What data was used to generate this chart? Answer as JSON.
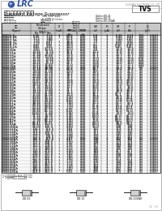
{
  "title_chinese": "瞬态电压抑制二极管",
  "title_english": "Transient Voltage Suppressor",
  "company": "LUGUANG ELECTRONIC CO., LTD",
  "logo_text": "LRC",
  "type_box": "TVS",
  "spec_lines": [
    [
      "标称击穿电压范围",
      "VBR: 6.8V~440V",
      "Outline:DO-41"
    ],
    [
      "最大峰值脉冲功率",
      "P: 400W @ t=1ms",
      "Outline:DO-15"
    ],
    [
      "封装 / 极型 / 极性",
      "U: 单向/双向",
      "Outline:DO-201AD"
    ]
  ],
  "table_data": [
    [
      "P4KE6.8",
      "6.45",
      "7.14",
      "1",
      "58.8",
      "600",
      "5.8",
      "1",
      "6.40",
      "6.63",
      "700",
      "0.987"
    ],
    [
      "P4KE6.8A",
      "6.45",
      "7.14",
      "1",
      "58.8",
      "600",
      "5.8",
      "1",
      "6.40",
      "6.63",
      "700",
      "0.987"
    ],
    [
      "P4KE7.5",
      "7.13",
      "7.88",
      "",
      "53.3",
      "600",
      "7.0",
      "1",
      "7.00",
      "7.00",
      "700",
      "0.987"
    ],
    [
      "P4KE7.5A",
      "7.13",
      "7.88",
      "",
      "53.3",
      "600",
      "7.0",
      "1",
      "7.00",
      "7.00",
      "700",
      "0.987"
    ],
    [
      "P4KE8.2",
      "7.79",
      "8.61",
      "1",
      "48.8",
      "600",
      "7.7",
      "1",
      "8.55",
      "8.55",
      "700",
      "0.987"
    ],
    [
      "P4KE8.2A",
      "7.79",
      "8.61",
      "",
      "48.8",
      "600",
      "7.7",
      "1",
      "8.55",
      "8.55",
      "700",
      "0.987"
    ],
    [
      "P4KE9.1",
      "8.65",
      "9.55",
      "1",
      "44.0",
      "600",
      "8.5",
      "1",
      "9.40",
      "9.40",
      "700",
      "0.987"
    ],
    [
      "P4KE9.1A",
      "8.65",
      "9.55",
      "",
      "44.0",
      "600",
      "8.5",
      "1",
      "9.40",
      "9.40",
      "700",
      "0.987"
    ],
    [
      "P4KE10",
      "9.50",
      "10.50",
      "1",
      "40.0",
      "600",
      "9.0",
      "1",
      "10.4",
      "10.4",
      "700",
      "0.987"
    ],
    [
      "P4KE10A",
      "9.50",
      "10.50",
      "",
      "40.0",
      "600",
      "9.0",
      "1",
      "10.4",
      "10.4",
      "700",
      "0.987"
    ],
    [
      "P4KE11",
      "10.45",
      "11.55",
      "1",
      "36.4",
      "500",
      "10.2",
      "1",
      "11.6",
      "11.6",
      "700",
      "0.987"
    ],
    [
      "P4KE11A",
      "10.45",
      "11.55",
      "",
      "36.4",
      "500",
      "10.2",
      "1",
      "11.6",
      "11.6",
      "700",
      "0.987"
    ],
    [
      "P4KE12",
      "11.40",
      "12.60",
      "1",
      "33.3",
      "500",
      "11.1",
      "1",
      "12.7",
      "12.7",
      "700",
      "0.987"
    ],
    [
      "P4KE12A",
      "11.40",
      "12.60",
      "",
      "33.3",
      "500",
      "11.1",
      "1",
      "12.7",
      "12.7",
      "700",
      "0.987"
    ],
    [
      "P4KE13",
      "12.35",
      "13.65",
      "1",
      "30.8",
      "500",
      "12.0",
      "1",
      "13.8",
      "13.8",
      "500",
      "0.987"
    ],
    [
      "P4KE13A",
      "12.35",
      "13.65",
      "",
      "30.8",
      "500",
      "12.0",
      "1",
      "13.8",
      "13.8",
      "500",
      "0.987"
    ],
    [
      "P4KE15",
      "14.25",
      "15.75",
      "1",
      "26.7",
      "500",
      "13.8",
      "1",
      "16.0",
      "16.0",
      "200",
      "0.987"
    ],
    [
      "P4KE15A",
      "14.25",
      "15.75",
      "",
      "26.7",
      "500",
      "13.8",
      "1",
      "16.0",
      "16.0",
      "200",
      "0.987"
    ],
    [
      "P4KE16",
      "15.20",
      "16.80",
      "1",
      "25.0",
      "500",
      "14.8",
      "1",
      "17.1",
      "17.1",
      "200",
      "0.987"
    ],
    [
      "P4KE16A",
      "15.20",
      "16.80",
      "",
      "25.0",
      "500",
      "14.8",
      "1",
      "17.1",
      "17.1",
      "200",
      "0.987"
    ],
    [
      "P4KE18",
      "17.10",
      "18.90",
      "1",
      "22.2",
      "500",
      "16.7",
      "1",
      "19.2",
      "19.2",
      "50",
      "0.987"
    ],
    [
      "P4KE18A",
      "17.10",
      "18.90",
      "",
      "22.2",
      "500",
      "16.7",
      "1",
      "19.2",
      "19.2",
      "50",
      "0.987"
    ],
    [
      "P4KE20",
      "19.00",
      "21.00",
      "1",
      "20.0",
      "500",
      "18.5",
      "1",
      "21.5",
      "21.5",
      "50",
      "0.987"
    ],
    [
      "P4KE20A",
      "19.00",
      "21.00",
      "",
      "20.0",
      "500",
      "18.5",
      "1",
      "21.5",
      "21.5",
      "50",
      "0.987"
    ],
    [
      "P4KE22",
      "20.90",
      "23.10",
      "1",
      "18.2",
      "500",
      "20.4",
      "1",
      "23.5",
      "23.5",
      "50",
      "0.987"
    ],
    [
      "P4KE22A",
      "20.90",
      "23.10",
      "",
      "18.2",
      "500",
      "20.4",
      "1",
      "23.5",
      "23.5",
      "50",
      "0.987"
    ],
    [
      "P4KE24",
      "22.80",
      "25.20",
      "1",
      "16.7",
      "500",
      "22.2",
      "1",
      "25.6",
      "25.6",
      "50",
      "0.987"
    ],
    [
      "P4KE24A",
      "22.80",
      "25.20",
      "",
      "16.7",
      "500",
      "22.2",
      "1",
      "25.6",
      "25.6",
      "50",
      "0.987"
    ],
    [
      "P4KE27",
      "25.65",
      "28.35",
      "1",
      "14.8",
      "500",
      "24.9",
      "1",
      "28.9",
      "28.9",
      "50",
      "0.987"
    ],
    [
      "P4KE27A",
      "25.65",
      "28.35",
      "",
      "14.8",
      "500",
      "24.9",
      "1",
      "28.9",
      "28.9",
      "50",
      "0.987"
    ],
    [
      "P4KE30",
      "28.50",
      "31.50",
      "1",
      "13.3",
      "500",
      "27.8",
      "1",
      "32.0",
      "32.0",
      "50",
      "0.987"
    ],
    [
      "P4KE30A",
      "28.50",
      "31.50",
      "",
      "13.3",
      "500",
      "27.8",
      "1",
      "32.0",
      "32.0",
      "50",
      "0.987"
    ],
    [
      "P4KE33",
      "31.35",
      "34.65",
      "1",
      "12.1",
      "500",
      "30.6",
      "1",
      "35.5",
      "35.5",
      "50",
      "0.987"
    ],
    [
      "P4KE33A",
      "31.35",
      "34.65",
      "",
      "12.1",
      "500",
      "30.6",
      "1",
      "35.5",
      "35.5",
      "50",
      "0.987"
    ],
    [
      "P4KE36",
      "34.20",
      "37.80",
      "1",
      "11.1",
      "500",
      "33.3",
      "1",
      "38.9",
      "38.9",
      "50",
      "0.987"
    ],
    [
      "P4KE36A",
      "34.20",
      "37.80",
      "",
      "11.1",
      "500",
      "33.3",
      "1",
      "38.9",
      "38.9",
      "50",
      "0.987"
    ],
    [
      "P4KE39",
      "37.05",
      "41.00",
      "1",
      "10.3",
      "500",
      "36.1",
      "1",
      "42.1",
      "42.1",
      "50",
      "0.987"
    ],
    [
      "P4KE39A",
      "37.05",
      "41.00",
      "",
      "10.3",
      "500",
      "36.1",
      "1",
      "42.1",
      "42.1",
      "50",
      "0.987"
    ],
    [
      "P4KE43",
      "40.85",
      "45.20",
      "1",
      "9.30",
      "500",
      "39.8",
      "1",
      "46.4",
      "46.4",
      "50",
      "0.987"
    ],
    [
      "P4KE43A",
      "40.85",
      "45.20",
      "",
      "9.30",
      "500",
      "39.8",
      "1",
      "46.4",
      "46.4",
      "50",
      "0.987"
    ],
    [
      "P4KE47",
      "44.65",
      "49.40",
      "1",
      "8.50",
      "500",
      "43.5",
      "1",
      "50.8",
      "50.8",
      "50",
      "0.987"
    ],
    [
      "P4KE47A",
      "44.65",
      "49.40",
      "",
      "8.50",
      "500",
      "43.5",
      "1",
      "50.8",
      "50.8",
      "50",
      "0.987"
    ],
    [
      "P4KE51",
      "48.45",
      "53.60",
      "1",
      "7.90",
      "500",
      "47.2",
      "1",
      "55.1",
      "55.1",
      "50",
      "0.987"
    ],
    [
      "P4KE51A",
      "48.45",
      "53.60",
      "",
      "7.90",
      "500",
      "47.2",
      "1",
      "55.1",
      "55.1",
      "50",
      "0.987"
    ],
    [
      "P4KE56",
      "53.20",
      "58.80",
      "1",
      "7.10",
      "500",
      "51.8",
      "1",
      "60.4",
      "60.4",
      "50",
      "0.987"
    ],
    [
      "P4KE56A",
      "53.20",
      "58.80",
      "",
      "7.10",
      "500",
      "51.8",
      "1",
      "60.4",
      "60.4",
      "50",
      "0.987"
    ],
    [
      "P4KE62",
      "58.90",
      "65.10",
      "1",
      "6.50",
      "500",
      "57.3",
      "1",
      "67.0",
      "67.0",
      "50",
      "0.987"
    ],
    [
      "P4KE62A",
      "58.90",
      "65.10",
      "",
      "6.50",
      "500",
      "57.3",
      "1",
      "67.0",
      "67.0",
      "50",
      "0.987"
    ],
    [
      "P4KE68",
      "64.60",
      "71.40",
      "1",
      "5.90",
      "500",
      "62.8",
      "1",
      "73.5",
      "73.5",
      "50",
      "0.987"
    ],
    [
      "P4KE68A",
      "64.60",
      "71.40",
      "",
      "5.90",
      "500",
      "62.8",
      "1",
      "73.5",
      "73.5",
      "50",
      "0.987"
    ],
    [
      "P4KE75",
      "71.25",
      "78.75",
      "1",
      "5.40",
      "500",
      "69.0",
      "1",
      "81.0",
      "81.0",
      "50",
      "0.987"
    ],
    [
      "P4KE75A",
      "71.25",
      "78.75",
      "",
      "5.40",
      "500",
      "69.0",
      "1",
      "81.0",
      "81.0",
      "50",
      "0.987"
    ],
    [
      "P4KE82",
      "77.90",
      "86.10",
      "1",
      "4.90",
      "500",
      "75.6",
      "1",
      "89.0",
      "89.0",
      "50",
      "0.987"
    ],
    [
      "P4KE82A",
      "77.90",
      "86.10",
      "",
      "4.90",
      "500",
      "75.6",
      "1",
      "89.0",
      "89.0",
      "50",
      "0.987"
    ],
    [
      "P4KE91",
      "86.45",
      "95.55",
      "1",
      "4.40",
      "500",
      "84.0",
      "1",
      "98.5",
      "98.5",
      "50",
      "0.987"
    ],
    [
      "P4KE91A",
      "86.45",
      "95.55",
      "",
      "4.40",
      "500",
      "84.0",
      "1",
      "98.5",
      "98.5",
      "50",
      "0.987"
    ],
    [
      "P4KE100",
      "95.00",
      "105.0",
      "1",
      "4.00",
      "500",
      "92.0",
      "1",
      "108",
      "108",
      "50",
      "0.987"
    ],
    [
      "P4KE100A",
      "95.00",
      "105.0",
      "",
      "4.00",
      "500",
      "92.0",
      "1",
      "108",
      "108",
      "50",
      "0.987"
    ],
    [
      "P4KE110",
      "104.5",
      "115.5",
      "1",
      "3.64",
      "500",
      "101",
      "1",
      "119",
      "119",
      "50",
      "0.987"
    ],
    [
      "P4KE110A",
      "104.5",
      "115.5",
      "",
      "3.64",
      "500",
      "101",
      "1",
      "119",
      "119",
      "50",
      "0.987"
    ],
    [
      "P4KE120",
      "114.0",
      "126.0",
      "1",
      "3.33",
      "500",
      "111",
      "1",
      "130",
      "130",
      "50",
      "0.987"
    ],
    [
      "P4KE120A",
      "114.0",
      "126.0",
      "",
      "3.33",
      "500",
      "111",
      "1",
      "130",
      "130",
      "50",
      "0.987"
    ],
    [
      "P4KE130",
      "123.5",
      "136.5",
      "1",
      "3.08",
      "500",
      "120",
      "1",
      "141",
      "141",
      "50",
      "0.987"
    ],
    [
      "P4KE130A",
      "123.5",
      "136.5",
      "",
      "3.08",
      "500",
      "120",
      "1",
      "141",
      "141",
      "50",
      "0.987"
    ],
    [
      "P4KE150",
      "142.5",
      "157.5",
      "1",
      "2.67",
      "500",
      "138",
      "1",
      "162",
      "162",
      "50",
      "0.987"
    ],
    [
      "P4KE150A",
      "142.5",
      "157.5",
      "",
      "2.67",
      "500",
      "138",
      "1",
      "162",
      "162",
      "50",
      "0.987"
    ],
    [
      "P4KE160",
      "152.0",
      "168.0",
      "1",
      "2.50",
      "500",
      "148",
      "1",
      "173",
      "173",
      "50",
      "0.987"
    ],
    [
      "P4KE160A",
      "152.0",
      "168.0",
      "",
      "2.50",
      "500",
      "148",
      "1",
      "173",
      "173",
      "50",
      "0.987"
    ],
    [
      "P4KE170",
      "161.5",
      "178.5",
      "1",
      "2.35",
      "500",
      "157",
      "1",
      "184",
      "184",
      "50",
      "0.987"
    ],
    [
      "P4KE170A",
      "161.5",
      "178.5",
      "",
      "2.35",
      "500",
      "157",
      "1",
      "184",
      "184",
      "50",
      "0.987"
    ],
    [
      "P4KE180",
      "171.0",
      "189.0",
      "1",
      "2.22",
      "500",
      "166",
      "1",
      "195",
      "195",
      "50",
      "0.987"
    ],
    [
      "P4KE180A",
      "171.0",
      "189.0",
      "",
      "2.22",
      "500",
      "166",
      "1",
      "195",
      "195",
      "50",
      "0.987"
    ],
    [
      "P4KE200",
      "190.0",
      "210.0",
      "1",
      "2.00",
      "500",
      "184",
      "1",
      "217",
      "217",
      "50",
      "0.987"
    ],
    [
      "P4KE200A",
      "190.0",
      "210.0",
      "",
      "2.00",
      "500",
      "184",
      "1",
      "217",
      "217",
      "50",
      "0.987"
    ],
    [
      "P4KE220",
      "209.0",
      "231.0",
      "1",
      "1.82",
      "500",
      "202",
      "1",
      "238",
      "238",
      "50",
      "0.987"
    ],
    [
      "P4KE220A",
      "209.0",
      "231.0",
      "",
      "1.82",
      "500",
      "202",
      "1",
      "238",
      "238",
      "50",
      "0.987"
    ],
    [
      "P4KE250",
      "237.5",
      "262.5",
      "1",
      "1.60",
      "500",
      "230",
      "1",
      "271",
      "271",
      "50",
      "0.987"
    ],
    [
      "P4KE250A",
      "237.5",
      "262.5",
      "",
      "1.60",
      "500",
      "230",
      "1",
      "271",
      "271",
      "50",
      "0.987"
    ],
    [
      "P4KE300",
      "285.0",
      "315.0",
      "1",
      "1.33",
      "500",
      "276",
      "1",
      "324",
      "324",
      "50",
      "0.987"
    ],
    [
      "P4KE300A",
      "285.0",
      "315.0",
      "",
      "1.33",
      "500",
      "276",
      "1",
      "324",
      "324",
      "50",
      "0.987"
    ],
    [
      "P4KE350",
      "332.5",
      "367.5",
      "1",
      "1.14",
      "500",
      "322",
      "1",
      "379",
      "379",
      "50",
      "0.987"
    ],
    [
      "P4KE350A",
      "332.5",
      "367.5",
      "",
      "1.14",
      "500",
      "322",
      "1",
      "379",
      "379",
      "50",
      "0.987"
    ],
    [
      "P4KE400",
      "380.0",
      "420.0",
      "1",
      "1.00",
      "500",
      "368",
      "1",
      "432",
      "432",
      "50",
      "0.987"
    ],
    [
      "P4KE400A",
      "380.0",
      "420.0",
      "",
      "1.00",
      "500",
      "368",
      "1",
      "432",
      "432",
      "50",
      "0.987"
    ],
    [
      "P4KE440",
      "418.0",
      "462.0",
      "1",
      "0.91",
      "500",
      "405",
      "1",
      "475",
      "475",
      "50",
      "0.987"
    ],
    [
      "P4KE440A",
      "418.0",
      "462.0",
      "",
      "0.91",
      "500",
      "405",
      "1",
      "475",
      "475",
      "50",
      "0.987"
    ]
  ],
  "note1": "注:1 以上参数均在T=25°C (室温) 下测试",
  "note2": "    2.标注#号的器件 按需求方向提供",
  "bg_color": "#ffffff",
  "header_bg": "#c8c8c8",
  "subheader_bg": "#e0e0e0",
  "row_alt_bg": "#f0f0f0",
  "border_color": "#000000",
  "text_color": "#000000",
  "logo_color": "#3355aa",
  "company_color": "#888888",
  "fs_body": 2.8,
  "fs_header": 2.6,
  "fs_tiny": 2.2,
  "fs_title_cn": 5.0,
  "fs_title_en": 4.0,
  "fs_spec": 2.0,
  "fs_typebox": 5.5,
  "fs_logo": 7.0
}
